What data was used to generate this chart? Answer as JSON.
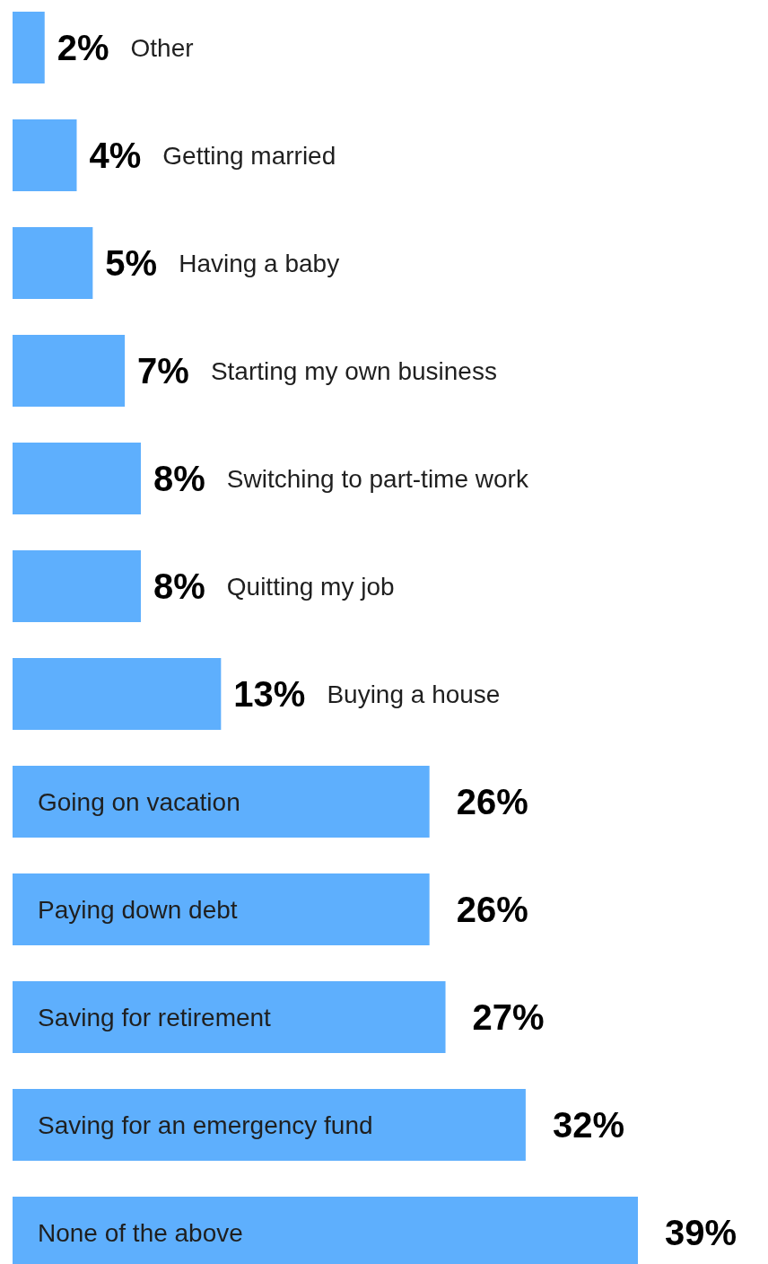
{
  "chart_data": {
    "type": "bar",
    "orientation": "horizontal",
    "categories": [
      "Other",
      "Getting married",
      "Having a baby",
      "Starting my own business",
      "Switching to part-time work",
      "Quitting my job",
      "Buying a house",
      "Going on vacation",
      "Paying down debt",
      "Saving for retirement",
      "Saving for an emergency fund",
      "None of the above"
    ],
    "values": [
      2,
      4,
      5,
      7,
      8,
      8,
      13,
      26,
      26,
      27,
      32,
      39
    ],
    "value_labels": [
      "2%",
      "4%",
      "5%",
      "7%",
      "8%",
      "8%",
      "13%",
      "26%",
      "26%",
      "27%",
      "32%",
      "39%"
    ],
    "color": "#5eaffd"
  }
}
